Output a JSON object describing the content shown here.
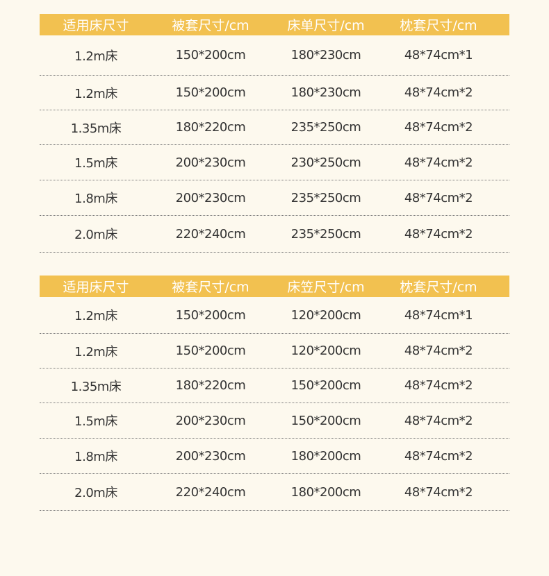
{
  "colors": {
    "header": "#f2c150",
    "background": "#fdf9ee"
  },
  "tables": [
    {
      "headers": [
        "适用床尺寸",
        "被套尺寸/cm",
        "床单尺寸/cm",
        "枕套尺寸/cm"
      ],
      "rows": [
        [
          "1.2m床",
          "150*200cm",
          "180*230cm",
          "48*74cm*1"
        ],
        [
          "1.2m床",
          "150*200cm",
          "180*230cm",
          "48*74cm*2"
        ],
        [
          "1.35m床",
          "180*220cm",
          "235*250cm",
          "48*74cm*2"
        ],
        [
          "1.5m床",
          "200*230cm",
          "230*250cm",
          "48*74cm*2"
        ],
        [
          "1.8m床",
          "200*230cm",
          "235*250cm",
          "48*74cm*2"
        ],
        [
          "2.0m床",
          "220*240cm",
          "235*250cm",
          "48*74cm*2"
        ]
      ]
    },
    {
      "headers": [
        "适用床尺寸",
        "被套尺寸/cm",
        "床笠尺寸/cm",
        "枕套尺寸/cm"
      ],
      "rows": [
        [
          "1.2m床",
          "150*200cm",
          "120*200cm",
          "48*74cm*1"
        ],
        [
          "1.2m床",
          "150*200cm",
          "120*200cm",
          "48*74cm*2"
        ],
        [
          "1.35m床",
          "180*220cm",
          "150*200cm",
          "48*74cm*2"
        ],
        [
          "1.5m床",
          "200*230cm",
          "150*200cm",
          "48*74cm*2"
        ],
        [
          "1.8m床",
          "200*230cm",
          "180*200cm",
          "48*74cm*2"
        ],
        [
          "2.0m床",
          "220*240cm",
          "180*200cm",
          "48*74cm*2"
        ]
      ]
    }
  ]
}
